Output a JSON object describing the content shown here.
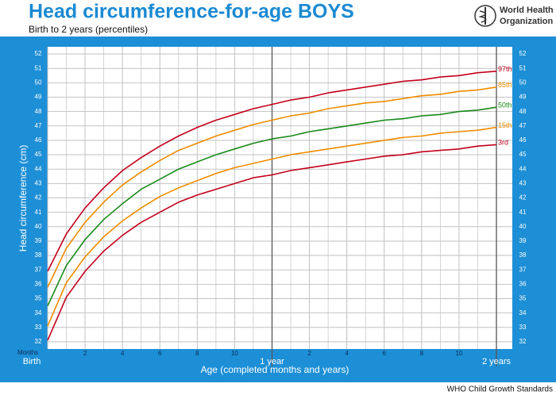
{
  "chart_data": {
    "type": "line",
    "title": "Head circumference-for-age  BOYS",
    "subtitle": "Birth to 2 years (percentiles)",
    "logo_text": [
      "World Health",
      "Organization"
    ],
    "y_label": "Head circumference (cm)",
    "x_label": "Age (completed months and years)",
    "x_unit_label": "Months",
    "footer": "WHO Child Growth Standards",
    "x": [
      0,
      1,
      2,
      3,
      4,
      5,
      6,
      7,
      8,
      9,
      10,
      11,
      12,
      13,
      14,
      15,
      16,
      17,
      18,
      19,
      20,
      21,
      22,
      23,
      24
    ],
    "xlim": [
      0,
      24
    ],
    "ylim": [
      31.5,
      52.5
    ],
    "grid": true,
    "x_grid_step": 1,
    "y_grid_step": 1,
    "xticks": [
      {
        "value": 0,
        "label": "Birth"
      },
      2,
      4,
      6,
      8,
      10,
      {
        "value": 12,
        "label": "1 year"
      },
      {
        "value": 14,
        "label": "2"
      },
      {
        "value": 16,
        "label": "4"
      },
      {
        "value": 18,
        "label": "6"
      },
      {
        "value": 20,
        "label": "8"
      },
      {
        "value": 22,
        "label": "10"
      },
      {
        "value": 24,
        "label": "2 years"
      }
    ],
    "yticks": [
      32,
      33,
      34,
      35,
      36,
      37,
      38,
      39,
      40,
      41,
      42,
      43,
      44,
      45,
      46,
      47,
      48,
      49,
      50,
      51,
      52
    ],
    "series": [
      {
        "name": "97th",
        "color": "#c4001c",
        "values": [
          36.9,
          39.5,
          41.3,
          42.7,
          43.9,
          44.8,
          45.6,
          46.3,
          46.9,
          47.4,
          47.8,
          48.2,
          48.5,
          48.8,
          49.0,
          49.3,
          49.5,
          49.7,
          49.9,
          50.1,
          50.2,
          50.4,
          50.5,
          50.7,
          50.8
        ]
      },
      {
        "name": "85th",
        "color": "#f08c00",
        "values": [
          35.8,
          38.5,
          40.3,
          41.7,
          42.9,
          43.8,
          44.6,
          45.3,
          45.8,
          46.3,
          46.7,
          47.1,
          47.4,
          47.7,
          47.9,
          48.2,
          48.4,
          48.6,
          48.7,
          48.9,
          49.1,
          49.2,
          49.4,
          49.5,
          49.7
        ]
      },
      {
        "name": "50th",
        "color": "#198a1a",
        "values": [
          34.5,
          37.3,
          39.1,
          40.5,
          41.6,
          42.6,
          43.3,
          44.0,
          44.5,
          45.0,
          45.4,
          45.8,
          46.1,
          46.3,
          46.6,
          46.8,
          47.0,
          47.2,
          47.4,
          47.5,
          47.7,
          47.8,
          48.0,
          48.1,
          48.3
        ]
      },
      {
        "name": "15th",
        "color": "#f08c00",
        "values": [
          33.1,
          36.1,
          37.9,
          39.3,
          40.4,
          41.3,
          42.1,
          42.7,
          43.2,
          43.7,
          44.1,
          44.4,
          44.7,
          45.0,
          45.2,
          45.4,
          45.6,
          45.8,
          46.0,
          46.2,
          46.3,
          46.5,
          46.6,
          46.7,
          46.9
        ]
      },
      {
        "name": "3rd",
        "color": "#c4001c",
        "values": [
          32.1,
          35.1,
          36.9,
          38.3,
          39.4,
          40.3,
          41.0,
          41.7,
          42.2,
          42.6,
          43.0,
          43.4,
          43.6,
          43.9,
          44.1,
          44.3,
          44.5,
          44.7,
          44.9,
          45.0,
          45.2,
          45.3,
          45.4,
          45.6,
          45.7
        ]
      }
    ]
  }
}
